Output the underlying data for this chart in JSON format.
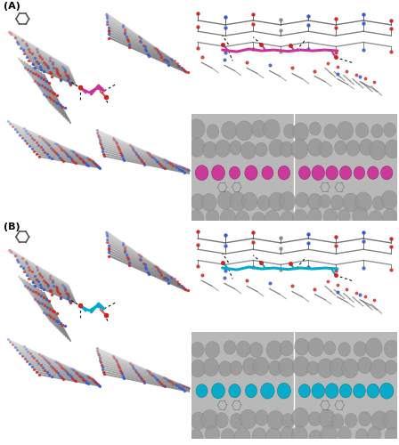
{
  "figure_width": 4.48,
  "figure_height": 5.0,
  "dpi": 100,
  "background_color": "#ffffff",
  "label_A": "(A)",
  "label_B": "(B)",
  "label_fontsize": 8,
  "ligand_color_A": "#cc3399",
  "ligand_color_B": "#00aacc",
  "ligand_balls_A": "#bb44aa",
  "ligand_balls_B": "#00bbcc",
  "carbon_color": "#555555",
  "nitrogen_color": "#3355cc",
  "oxygen_color": "#cc2222",
  "protein_grey": "#888888",
  "protein_dark": "#444444",
  "sphere_grey": "#999999",
  "sphere_dark": "#777777",
  "bg_panel": "#f0f0f0",
  "bg_balls": "#cccccc",
  "dash_color": "#111111"
}
